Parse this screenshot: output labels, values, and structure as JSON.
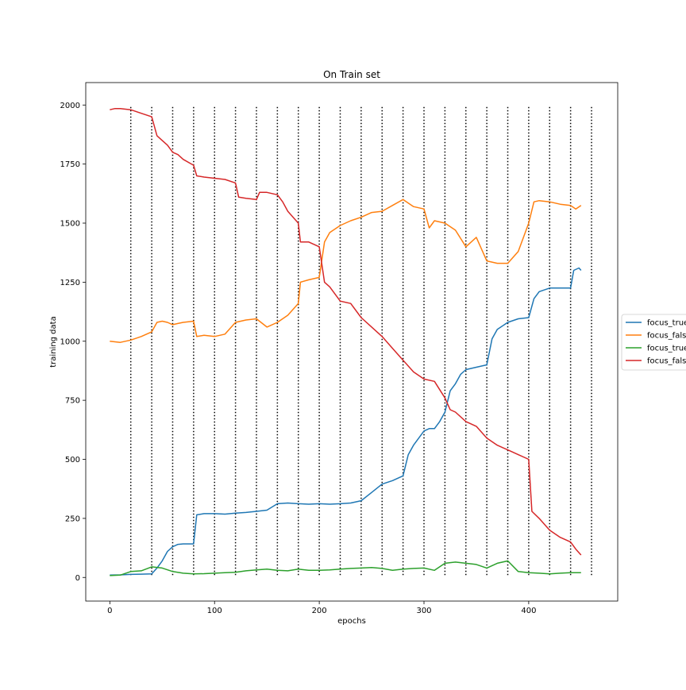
{
  "chart_data": {
    "type": "line",
    "title": "On Train set",
    "xlabel": "epochs",
    "ylabel": "training data",
    "xlim": [
      -23,
      485
    ],
    "ylim": [
      -100,
      2095
    ],
    "xticks": [
      0,
      100,
      200,
      300,
      400
    ],
    "yticks": [
      0,
      250,
      500,
      750,
      1000,
      1250,
      1500,
      1750,
      2000
    ],
    "vlines": {
      "x": [
        20,
        40,
        60,
        80,
        100,
        120,
        140,
        160,
        180,
        200,
        220,
        240,
        260,
        280,
        300,
        320,
        340,
        360,
        380,
        400,
        420,
        440,
        460
      ],
      "ymin": 10,
      "ymax": 2000,
      "style": "dotted",
      "color": "#000000"
    },
    "legend_position": "center-right",
    "series": [
      {
        "name": "focus_true_pred_true",
        "color": "#1f77b4",
        "x": [
          0,
          10,
          20,
          30,
          40,
          45,
          50,
          55,
          60,
          65,
          70,
          80,
          83,
          90,
          100,
          110,
          120,
          130,
          140,
          150,
          160,
          170,
          180,
          190,
          200,
          210,
          220,
          230,
          240,
          250,
          260,
          270,
          280,
          285,
          290,
          300,
          305,
          310,
          315,
          320,
          325,
          330,
          335,
          340,
          350,
          360,
          365,
          370,
          380,
          390,
          400,
          405,
          410,
          420,
          430,
          440,
          443,
          448,
          450
        ],
        "y": [
          10,
          11,
          13,
          14,
          15,
          40,
          70,
          110,
          130,
          140,
          142,
          142,
          265,
          270,
          270,
          268,
          272,
          275,
          280,
          285,
          312,
          315,
          312,
          310,
          312,
          310,
          312,
          315,
          325,
          360,
          395,
          410,
          430,
          520,
          560,
          620,
          630,
          630,
          660,
          700,
          790,
          820,
          860,
          880,
          890,
          900,
          1010,
          1050,
          1080,
          1095,
          1100,
          1180,
          1210,
          1225,
          1225,
          1225,
          1300,
          1310,
          1300
        ]
      },
      {
        "name": "focus_false_pred_true",
        "color": "#ff7f0e",
        "x": [
          0,
          10,
          20,
          30,
          40,
          45,
          50,
          55,
          60,
          65,
          70,
          80,
          83,
          90,
          100,
          110,
          120,
          130,
          140,
          150,
          160,
          170,
          180,
          182,
          190,
          200,
          205,
          210,
          220,
          230,
          240,
          250,
          260,
          270,
          280,
          290,
          300,
          305,
          310,
          320,
          330,
          340,
          350,
          360,
          370,
          380,
          390,
          400,
          405,
          410,
          420,
          430,
          440,
          445,
          450
        ],
        "y": [
          1000,
          995,
          1005,
          1020,
          1040,
          1080,
          1085,
          1080,
          1070,
          1075,
          1080,
          1085,
          1020,
          1025,
          1020,
          1030,
          1080,
          1090,
          1095,
          1060,
          1080,
          1110,
          1160,
          1250,
          1260,
          1270,
          1420,
          1460,
          1490,
          1510,
          1525,
          1545,
          1550,
          1575,
          1600,
          1570,
          1560,
          1480,
          1510,
          1500,
          1470,
          1400,
          1440,
          1340,
          1330,
          1330,
          1380,
          1500,
          1590,
          1595,
          1590,
          1580,
          1575,
          1560,
          1575
        ]
      },
      {
        "name": "focus_true_pred_false",
        "color": "#2ca02c",
        "x": [
          0,
          10,
          20,
          30,
          40,
          50,
          60,
          70,
          80,
          90,
          100,
          110,
          120,
          130,
          140,
          150,
          160,
          170,
          180,
          190,
          200,
          210,
          220,
          230,
          240,
          250,
          260,
          270,
          280,
          290,
          300,
          310,
          320,
          330,
          340,
          350,
          360,
          370,
          380,
          390,
          400,
          410,
          420,
          430,
          440,
          450
        ],
        "y": [
          8,
          10,
          25,
          28,
          45,
          40,
          25,
          18,
          15,
          16,
          18,
          20,
          22,
          28,
          32,
          35,
          30,
          28,
          35,
          30,
          30,
          32,
          35,
          38,
          40,
          42,
          38,
          30,
          35,
          38,
          40,
          30,
          60,
          65,
          60,
          55,
          40,
          60,
          70,
          25,
          20,
          18,
          15,
          18,
          20,
          20
        ]
      },
      {
        "name": "focus_false_pred_false",
        "color": "#d62728",
        "x": [
          0,
          5,
          10,
          20,
          30,
          40,
          45,
          50,
          55,
          60,
          65,
          70,
          80,
          83,
          90,
          100,
          110,
          120,
          123,
          130,
          140,
          143,
          150,
          160,
          165,
          170,
          180,
          182,
          190,
          200,
          205,
          210,
          220,
          230,
          240,
          250,
          260,
          270,
          280,
          290,
          300,
          310,
          320,
          325,
          330,
          340,
          350,
          360,
          370,
          380,
          390,
          400,
          403,
          410,
          420,
          430,
          440,
          445,
          450
        ],
        "y": [
          1980,
          1985,
          1985,
          1980,
          1965,
          1950,
          1870,
          1850,
          1830,
          1800,
          1790,
          1770,
          1745,
          1700,
          1695,
          1690,
          1685,
          1670,
          1610,
          1605,
          1600,
          1630,
          1630,
          1620,
          1590,
          1550,
          1500,
          1420,
          1420,
          1400,
          1250,
          1230,
          1170,
          1160,
          1100,
          1060,
          1020,
          970,
          920,
          870,
          840,
          830,
          760,
          710,
          700,
          660,
          640,
          590,
          560,
          540,
          520,
          500,
          280,
          250,
          200,
          170,
          150,
          120,
          95
        ]
      }
    ]
  }
}
